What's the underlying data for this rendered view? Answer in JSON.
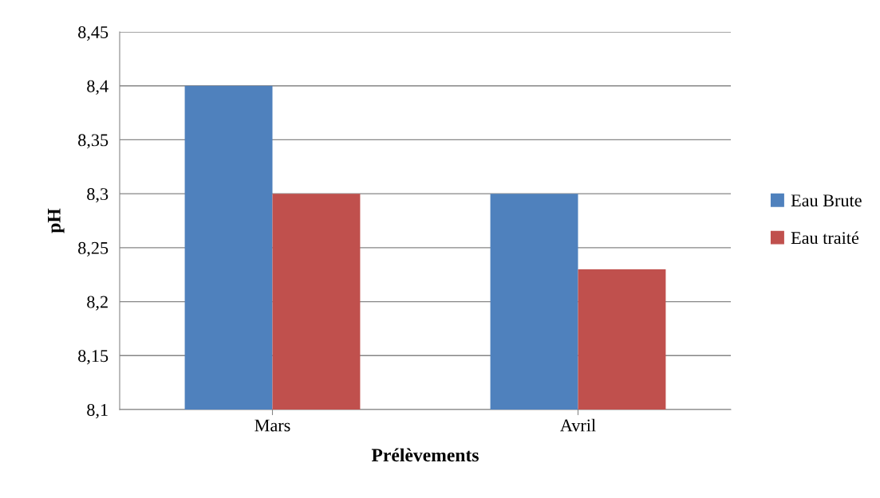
{
  "chart_data": {
    "type": "bar",
    "xlabel": "Prélèvements",
    "ylabel": "pH",
    "categories": [
      "Mars",
      "Avril"
    ],
    "series": [
      {
        "name": "Eau Brute",
        "color": "#4f81bd",
        "values": [
          8.4,
          8.3
        ]
      },
      {
        "name": "Eau traité",
        "color": "#c0504d",
        "values": [
          8.3,
          8.23
        ]
      }
    ],
    "ylim": [
      8.1,
      8.45
    ],
    "yticks": [
      {
        "value": 8.1,
        "label": "8,1"
      },
      {
        "value": 8.15,
        "label": "8,15"
      },
      {
        "value": 8.2,
        "label": "8,2"
      },
      {
        "value": 8.25,
        "label": "8,25"
      },
      {
        "value": 8.3,
        "label": "8,3"
      },
      {
        "value": 8.35,
        "label": "8,35"
      },
      {
        "value": 8.4,
        "label": "8,4"
      },
      {
        "value": 8.45,
        "label": "8,45"
      }
    ],
    "grid": "y",
    "legend": "right"
  }
}
